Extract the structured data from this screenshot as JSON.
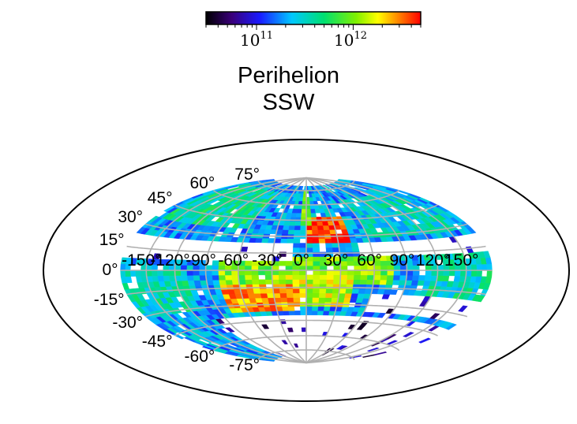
{
  "chart_data": {
    "type": "heatmap",
    "projection": "aitoff-hammer",
    "title_lines": [
      "Perihelion",
      "SSW"
    ],
    "colorbar": {
      "scale": "log",
      "colormap": "black-blue-cyan-green-yellow-red",
      "range": [
        30000000000,
        5000000000000
      ],
      "tick_labels": [
        {
          "base": "10",
          "exp": "11",
          "value": 100000000000
        },
        {
          "base": "10",
          "exp": "12",
          "value": 1000000000000
        }
      ]
    },
    "latitude_labels": [
      "75°",
      "60°",
      "45°",
      "30°",
      "15°",
      "0°",
      "-15°",
      "-30°",
      "-45°",
      "-60°",
      "-75°"
    ],
    "latitude_values": [
      75,
      60,
      45,
      30,
      15,
      0,
      -15,
      -30,
      -45,
      -60,
      -75
    ],
    "longitude_labels": [
      "-150°",
      "-120°",
      "-90°",
      "-60°",
      "-30°",
      "0°",
      "30°",
      "60°",
      "90°",
      "120°",
      "150°"
    ],
    "longitude_values": [
      -150,
      -120,
      -90,
      -60,
      -30,
      0,
      30,
      60,
      90,
      120,
      150
    ],
    "grid": true,
    "cell_size_deg": {
      "lon": 6,
      "lat": 4
    },
    "regions": [
      {
        "lon": [
          0,
          40
        ],
        "lat": [
          24,
          46
        ],
        "value": 4000000000000
      },
      {
        "lon": [
          -8,
          8
        ],
        "lat": [
          42,
          74
        ],
        "value": 900000000000
      },
      {
        "lon": [
          -75,
          80
        ],
        "lat": [
          -10,
          12
        ],
        "value": 1000000000000
      },
      {
        "lon": [
          -75,
          -5
        ],
        "lat": [
          -36,
          -12
        ],
        "value": 2500000000000
      },
      {
        "lon": [
          -30,
          40
        ],
        "lat": [
          -30,
          -5
        ],
        "value": 1400000000000
      },
      {
        "lon": [
          -180,
          -110
        ],
        "lat": [
          -32,
          0
        ],
        "value": 350000000000
      },
      {
        "lon": [
          100,
          180
        ],
        "lat": [
          -22,
          12
        ],
        "value": 350000000000
      },
      {
        "lon": [
          -170,
          -60
        ],
        "lat": [
          38,
          72
        ],
        "value": 400000000000
      },
      {
        "lon": [
          60,
          170
        ],
        "lat": [
          28,
          62
        ],
        "value": 300000000000
      }
    ],
    "empty_bands": [
      {
        "lon": [
          -180,
          -10
        ],
        "lat": [
          10,
          24
        ]
      },
      {
        "lon": [
          50,
          180
        ],
        "lat": [
          14,
          24
        ]
      },
      {
        "lon": [
          -100,
          180
        ],
        "lat": [
          -80,
          -40
        ]
      },
      {
        "lon": [
          60,
          180
        ],
        "lat": [
          -36,
          -20
        ]
      }
    ]
  }
}
